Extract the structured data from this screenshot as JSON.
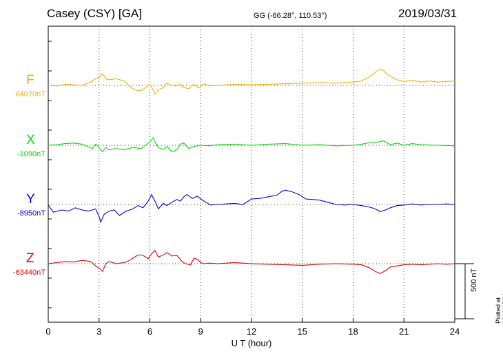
{
  "header": {
    "station": "Casey (CSY)  [GA]",
    "coords": "GG (-66.28°, 110.53°)",
    "date": "2019/03/31"
  },
  "scale_label": "500 nT",
  "plotted_note": "Plotted at 2019/05/01 01:36 UT",
  "colors": {
    "F": "#f0b000",
    "X": "#00dd00",
    "Y": "#0000dd",
    "Z": "#dd0000"
  },
  "chart_data": {
    "type": "line",
    "xlabel": "U T (hour)",
    "x_ticks": [
      "0",
      "3",
      "6",
      "9",
      "12",
      "15",
      "18",
      "21",
      "24"
    ],
    "xlim": [
      0,
      24
    ],
    "y_units": "nT",
    "scale_bar_nT": 500,
    "series": [
      {
        "name": "F",
        "baseline_label": "64070nT",
        "baseline": 64070,
        "x": [
          0,
          0.5,
          1,
          1.5,
          2,
          2.5,
          2.8,
          3.0,
          3.2,
          3.5,
          4,
          4.5,
          4.8,
          5.0,
          5.3,
          5.5,
          5.8,
          6.0,
          6.2,
          6.3,
          6.5,
          6.8,
          7.0,
          7.3,
          7.5,
          7.8,
          8.0,
          8.3,
          8.6,
          8.9,
          9.2,
          9.5,
          10,
          11,
          12,
          13,
          14,
          15,
          16,
          17,
          18,
          18.5,
          19,
          19.3,
          19.6,
          19.8,
          20.0,
          20.3,
          20.6,
          21,
          21.5,
          22,
          22.5,
          23,
          23.5,
          24
        ],
        "y": [
          64070,
          64065,
          64080,
          64075,
          64070,
          64100,
          64130,
          64145,
          64175,
          64120,
          64130,
          64110,
          64060,
          64040,
          64020,
          64025,
          64055,
          64080,
          64030,
          63990,
          64030,
          64050,
          64090,
          64070,
          64065,
          64080,
          64050,
          64040,
          64080,
          64045,
          64085,
          64065,
          64070,
          64080,
          64075,
          64080,
          64085,
          64090,
          64095,
          64090,
          64100,
          64110,
          64150,
          64190,
          64215,
          64205,
          64170,
          64145,
          64120,
          64105,
          64115,
          64100,
          64110,
          64100,
          64105,
          64110
        ]
      },
      {
        "name": "X",
        "baseline_label": "-1090nT",
        "baseline": -1090,
        "x": [
          0,
          0.5,
          1,
          1.5,
          2,
          2.3,
          2.6,
          2.8,
          3.0,
          3.2,
          3.4,
          3.6,
          4,
          4.5,
          5,
          5.5,
          5.8,
          6.0,
          6.2,
          6.3,
          6.5,
          6.8,
          7.0,
          7.3,
          7.6,
          7.8,
          8.0,
          8.3,
          8.6,
          9.0,
          9.5,
          10,
          11,
          12,
          13,
          14,
          15,
          16,
          17,
          18,
          18.5,
          19,
          19.5,
          19.8,
          20.2,
          20.6,
          21,
          21.5,
          22,
          23,
          24
        ],
        "y": [
          -1090,
          -1085,
          -1075,
          -1070,
          -1080,
          -1100,
          -1120,
          -1080,
          -1110,
          -1150,
          -1110,
          -1130,
          -1120,
          -1130,
          -1110,
          -1120,
          -1080,
          -1060,
          -1020,
          -1060,
          -1110,
          -1130,
          -1100,
          -1150,
          -1130,
          -1080,
          -1070,
          -1120,
          -1100,
          -1090,
          -1095,
          -1085,
          -1080,
          -1090,
          -1080,
          -1075,
          -1090,
          -1085,
          -1095,
          -1090,
          -1080,
          -1065,
          -1060,
          -1050,
          -1085,
          -1070,
          -1090,
          -1075,
          -1085,
          -1090,
          -1095
        ]
      },
      {
        "name": "Y",
        "baseline_label": "-8950nT",
        "baseline": -8950,
        "x": [
          0,
          0.3,
          0.8,
          1.2,
          1.6,
          2.0,
          2.4,
          2.8,
          3.0,
          3.1,
          3.3,
          3.6,
          3.9,
          4.2,
          4.6,
          5.0,
          5.3,
          5.6,
          5.9,
          6.1,
          6.3,
          6.5,
          6.8,
          7.0,
          7.3,
          7.6,
          7.8,
          8.0,
          8.2,
          8.5,
          8.8,
          9.0,
          9.3,
          9.6,
          10,
          10.5,
          11,
          11.5,
          12,
          12.5,
          13,
          13.5,
          13.8,
          14.0,
          14.4,
          14.8,
          15.2,
          15.6,
          16,
          16.5,
          17,
          17.5,
          18,
          18.5,
          19,
          19.3,
          19.6,
          19.9,
          20.2,
          20.6,
          21,
          21.5,
          22,
          22.5,
          23,
          23.5,
          24
        ],
        "y": [
          -8955,
          -9020,
          -9000,
          -9010,
          -8980,
          -9000,
          -9010,
          -8990,
          -9060,
          -9110,
          -9040,
          -9010,
          -9000,
          -9050,
          -9010,
          -8990,
          -8960,
          -8980,
          -8920,
          -8860,
          -8920,
          -8990,
          -8940,
          -8960,
          -8930,
          -8905,
          -8920,
          -8880,
          -8860,
          -8895,
          -8875,
          -8900,
          -8930,
          -8955,
          -8950,
          -8945,
          -8940,
          -8950,
          -8900,
          -8895,
          -8880,
          -8865,
          -8830,
          -8820,
          -8835,
          -8860,
          -8900,
          -8905,
          -8910,
          -8930,
          -8950,
          -8955,
          -8950,
          -8960,
          -8975,
          -8990,
          -9015,
          -9000,
          -8980,
          -8960,
          -8955,
          -8945,
          -8955,
          -8950,
          -8950,
          -8945,
          -8950
        ]
      },
      {
        "name": "Z",
        "baseline_label": "-63440nT",
        "baseline": -63440,
        "x": [
          0,
          0.5,
          1,
          1.5,
          2,
          2.5,
          2.8,
          3.0,
          3.2,
          3.4,
          3.6,
          4,
          4.5,
          4.8,
          5.0,
          5.3,
          5.6,
          5.9,
          6.1,
          6.3,
          6.5,
          6.8,
          7.0,
          7.3,
          7.6,
          7.9,
          8.1,
          8.4,
          8.6,
          8.8,
          9.0,
          9.2,
          9.5,
          10,
          11,
          12,
          13,
          14,
          15,
          16,
          17,
          18,
          18.5,
          19,
          19.3,
          19.6,
          19.9,
          20.2,
          20.6,
          21,
          21.5,
          22,
          22.5,
          23,
          23.5,
          24
        ],
        "y": [
          -63440,
          -63430,
          -63420,
          -63425,
          -63410,
          -63420,
          -63460,
          -63480,
          -63510,
          -63440,
          -63420,
          -63440,
          -63430,
          -63410,
          -63390,
          -63360,
          -63365,
          -63395,
          -63350,
          -63320,
          -63380,
          -63360,
          -63340,
          -63370,
          -63365,
          -63420,
          -63440,
          -63450,
          -63390,
          -63400,
          -63430,
          -63440,
          -63435,
          -63440,
          -63430,
          -63440,
          -63445,
          -63450,
          -63455,
          -63445,
          -63440,
          -63445,
          -63450,
          -63480,
          -63510,
          -63530,
          -63505,
          -63470,
          -63460,
          -63450,
          -63445,
          -63450,
          -63445,
          -63440,
          -63445,
          -63440
        ]
      }
    ]
  }
}
